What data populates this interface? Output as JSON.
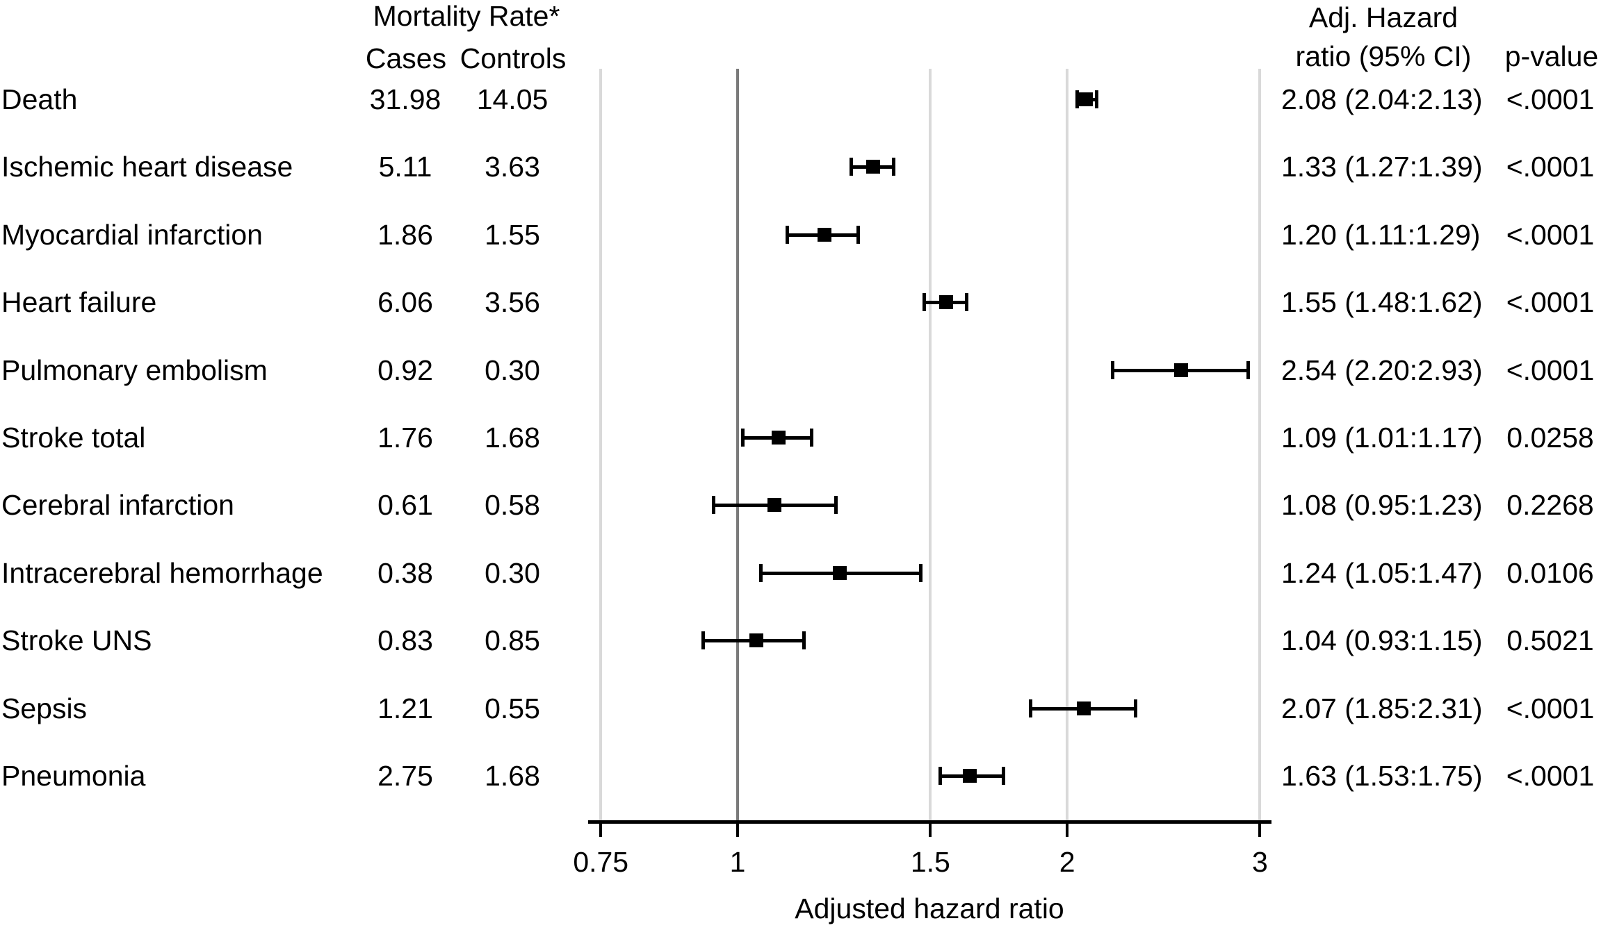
{
  "headers": {
    "mortality_line1": "Mortality Rate*",
    "cases": "Cases",
    "controls": "Controls",
    "hazard_line1": "Adj. Hazard",
    "hazard_line2": "ratio (95% CI)",
    "pvalue": "p-value"
  },
  "colors": {
    "text": "#000000",
    "marker": "#000000",
    "gridline": "#d9d9d9",
    "reference_line": "#7a7a7a",
    "axis_line": "#000000",
    "background": "#ffffff"
  },
  "chart_data": {
    "type": "scatter",
    "subtype": "forest-plot",
    "title": "",
    "xlabel": "Adjusted hazard ratio",
    "x_scale": "log",
    "x_range": [
      0.72,
      3.1
    ],
    "reference_line_x": 1,
    "grid": "vertical-only",
    "x_ticks": [
      "0.75",
      "1",
      "1.5",
      "2",
      "3"
    ],
    "x_tick_values": [
      0.75,
      1,
      1.5,
      2,
      3
    ],
    "rows": [
      {
        "label": "Death",
        "cases": "31.98",
        "controls": "14.05",
        "hr": 2.08,
        "ci_low": 2.04,
        "ci_high": 2.13,
        "hr_ci_text": "2.08 (2.04:2.13)",
        "p_value": "<.0001"
      },
      {
        "label": "Ischemic heart disease",
        "cases": "5.11",
        "controls": "3.63",
        "hr": 1.33,
        "ci_low": 1.27,
        "ci_high": 1.39,
        "hr_ci_text": "1.33 (1.27:1.39)",
        "p_value": "<.0001"
      },
      {
        "label": "Myocardial infarction",
        "cases": "1.86",
        "controls": "1.55",
        "hr": 1.2,
        "ci_low": 1.11,
        "ci_high": 1.29,
        "hr_ci_text": "1.20 (1.11:1.29)",
        "p_value": "<.0001"
      },
      {
        "label": "Heart failure",
        "cases": "6.06",
        "controls": "3.56",
        "hr": 1.55,
        "ci_low": 1.48,
        "ci_high": 1.62,
        "hr_ci_text": "1.55 (1.48:1.62)",
        "p_value": "<.0001"
      },
      {
        "label": "Pulmonary embolism",
        "cases": "0.92",
        "controls": "0.30",
        "hr": 2.54,
        "ci_low": 2.2,
        "ci_high": 2.93,
        "hr_ci_text": "2.54 (2.20:2.93)",
        "p_value": "<.0001"
      },
      {
        "label": "Stroke total",
        "cases": "1.76",
        "controls": "1.68",
        "hr": 1.09,
        "ci_low": 1.01,
        "ci_high": 1.17,
        "hr_ci_text": "1.09 (1.01:1.17)",
        "p_value": "0.0258"
      },
      {
        "label": "Cerebral infarction",
        "cases": "0.61",
        "controls": "0.58",
        "hr": 1.08,
        "ci_low": 0.95,
        "ci_high": 1.23,
        "hr_ci_text": "1.08 (0.95:1.23)",
        "p_value": "0.2268"
      },
      {
        "label": "Intracerebral hemorrhage",
        "cases": "0.38",
        "controls": "0.30",
        "hr": 1.24,
        "ci_low": 1.05,
        "ci_high": 1.47,
        "hr_ci_text": "1.24 (1.05:1.47)",
        "p_value": "0.0106"
      },
      {
        "label": "Stroke UNS",
        "cases": "0.83",
        "controls": "0.85",
        "hr": 1.04,
        "ci_low": 0.93,
        "ci_high": 1.15,
        "hr_ci_text": "1.04 (0.93:1.15)",
        "p_value": "0.5021"
      },
      {
        "label": "Sepsis",
        "cases": "1.21",
        "controls": "0.55",
        "hr": 2.07,
        "ci_low": 1.85,
        "ci_high": 2.31,
        "hr_ci_text": "2.07 (1.85:2.31)",
        "p_value": "<.0001"
      },
      {
        "label": "Pneumonia",
        "cases": "2.75",
        "controls": "1.68",
        "hr": 1.63,
        "ci_low": 1.53,
        "ci_high": 1.75,
        "hr_ci_text": "1.63 (1.53:1.75)",
        "p_value": "<.0001"
      }
    ]
  }
}
